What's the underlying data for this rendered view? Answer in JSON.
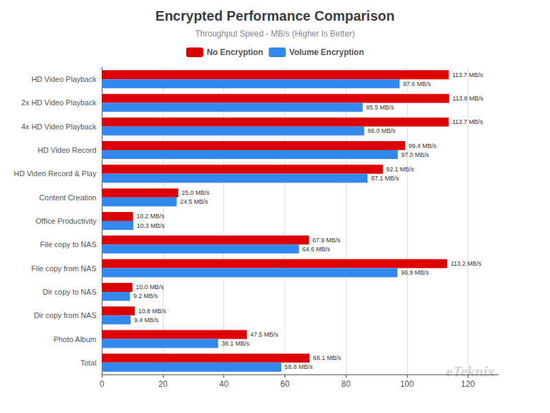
{
  "chart_data": {
    "type": "bar",
    "orientation": "horizontal",
    "title": "Encrypted Performance Comparison",
    "subtitle": "Throughput Speed - MB/s (Higher Is Better)",
    "categories": [
      "HD Video Playback",
      "2x HD Video Playback",
      "4x HD Video Playback",
      "HD Video Record",
      "HD Video Record & Play",
      "Content Creation",
      "Office Productivity",
      "File copy to NAS",
      "File copy from NAS",
      "Dir copy to NAS",
      "Dir copy from NAS",
      "Photo Album",
      "Total"
    ],
    "series": [
      {
        "name": "No Encryption",
        "color": "#dd0000",
        "values": [
          113.7,
          113.8,
          113.7,
          99.4,
          92.1,
          25.0,
          10.2,
          67.9,
          113.2,
          10.0,
          10.8,
          47.5,
          68.1
        ],
        "value_labels": [
          "113.7 MB/s",
          "113.8 MB/s",
          "113.7 MB/s",
          "99.4 MB/s",
          "92.1 MB/s",
          "25.0 MB/s",
          "10.2 MB/s",
          "67.9 MB/s",
          "113.2 MB/s",
          "10.0 MB/s",
          "10.8 MB/s",
          "47.5 MB/s",
          "68.1 MB/s"
        ]
      },
      {
        "name": "Volume Encryption",
        "color": "#3388ee",
        "values": [
          97.6,
          85.5,
          86.0,
          97.0,
          87.1,
          24.5,
          10.3,
          64.6,
          96.9,
          9.2,
          9.4,
          38.1,
          58.8
        ],
        "value_labels": [
          "97.6 MB/s",
          "85.5 MB/s",
          "86.0 MB/s",
          "97.0 MB/s",
          "87.1 MB/s",
          "24.5 MB/s",
          "10.3 MB/s",
          "64.6 MB/s",
          "96.9 MB/s",
          "9.2 MB/s",
          "9.4 MB/s",
          "38.1 MB/s",
          "58.8 MB/s"
        ]
      }
    ],
    "xlim": [
      0,
      130
    ],
    "xticks": [
      0,
      20,
      40,
      60,
      80,
      100,
      120
    ],
    "grid": true,
    "legend": "top",
    "data_labels": true,
    "annotations": [
      "eTeknix"
    ]
  }
}
